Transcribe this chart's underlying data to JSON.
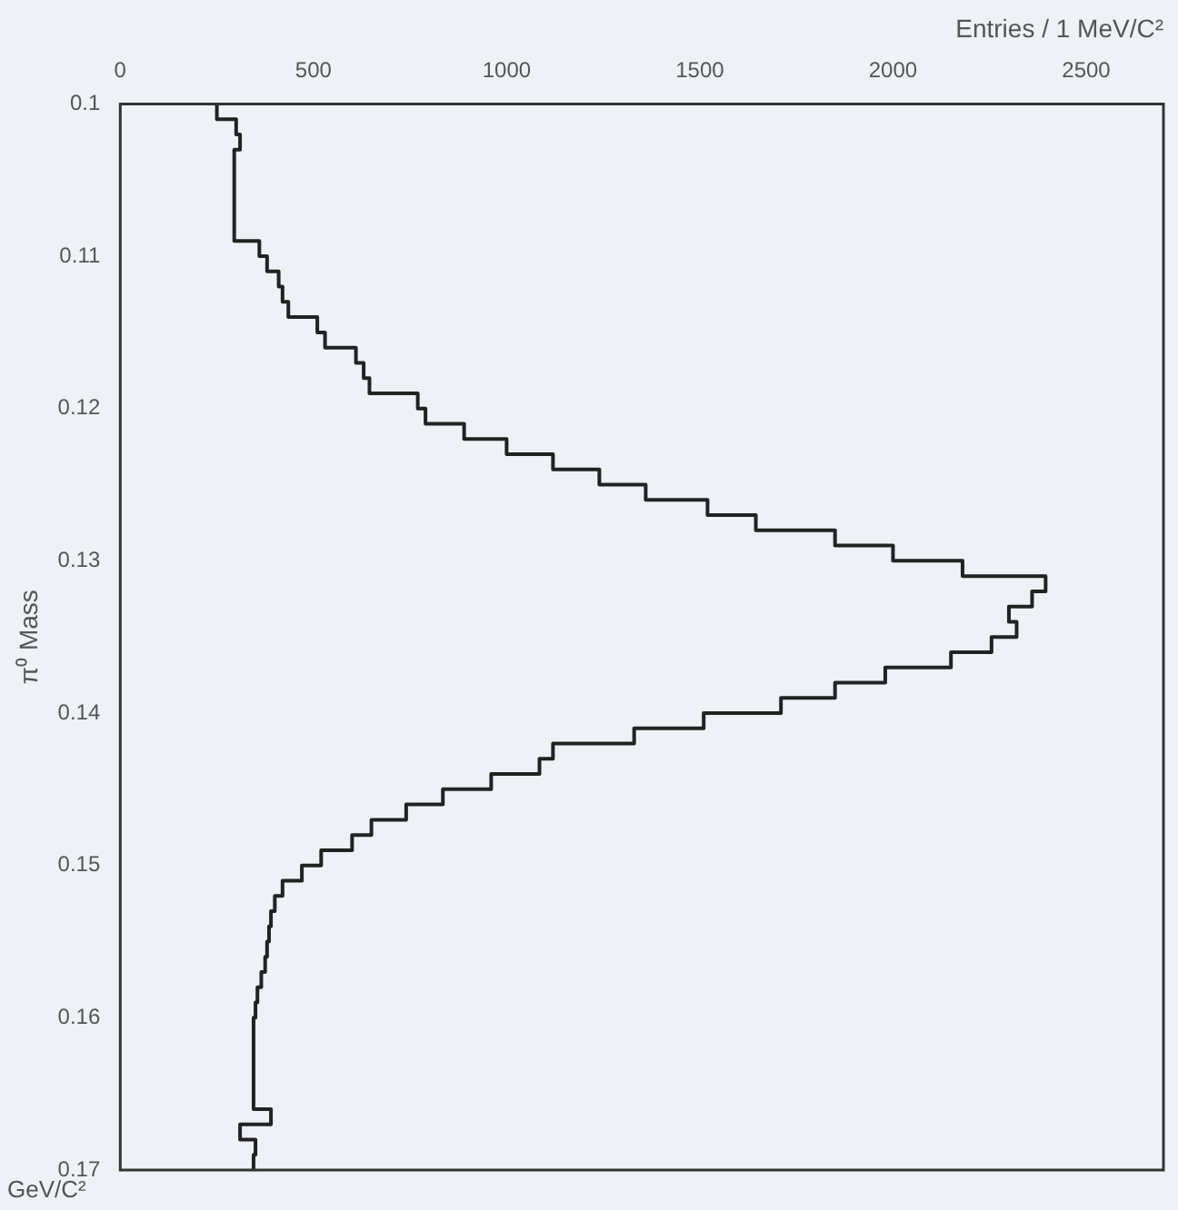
{
  "chart_data": {
    "type": "histogram",
    "orientation": "horizontal",
    "ylabel": "π⁰ Mass",
    "xlabel": "Entries / 1 MeV/C²",
    "annotations": [
      "GeV/C²"
    ],
    "bins": [
      0.1,
      0.101,
      0.102,
      0.103,
      0.104,
      0.105,
      0.106,
      0.107,
      0.108,
      0.109,
      0.11,
      0.111,
      0.112,
      0.113,
      0.114,
      0.115,
      0.116,
      0.117,
      0.118,
      0.119,
      0.12,
      0.121,
      0.122,
      0.123,
      0.124,
      0.125,
      0.126,
      0.127,
      0.128,
      0.129,
      0.13,
      0.131,
      0.132,
      0.133,
      0.134,
      0.135,
      0.136,
      0.137,
      0.138,
      0.139,
      0.14,
      0.141,
      0.142,
      0.143,
      0.144,
      0.145,
      0.146,
      0.147,
      0.148,
      0.149,
      0.15,
      0.151,
      0.152,
      0.153,
      0.154,
      0.155,
      0.156,
      0.157,
      0.158,
      0.159,
      0.16,
      0.161,
      0.162,
      0.163,
      0.164,
      0.165,
      0.166,
      0.167,
      0.168,
      0.169,
      0.17
    ],
    "values": [
      250,
      300,
      310,
      295,
      295,
      295,
      295,
      295,
      295,
      360,
      380,
      410,
      420,
      435,
      510,
      530,
      610,
      630,
      645,
      770,
      790,
      890,
      1000,
      1120,
      1240,
      1360,
      1520,
      1645,
      1850,
      2000,
      2180,
      2395,
      2360,
      2300,
      2320,
      2255,
      2150,
      1980,
      1850,
      1710,
      1510,
      1330,
      1120,
      1085,
      960,
      835,
      740,
      650,
      600,
      520,
      470,
      420,
      400,
      390,
      385,
      380,
      375,
      365,
      355,
      350,
      345,
      345,
      345,
      345,
      345,
      345,
      390,
      310,
      350,
      345
    ],
    "color": "#222222",
    "ylim": [
      0.17,
      0.1
    ],
    "yticks": [
      0.1,
      0.11,
      0.12,
      0.13,
      0.14,
      0.15,
      0.16,
      0.17
    ],
    "xlim": [
      0,
      2700
    ],
    "xticks": [
      0,
      500,
      1000,
      1500,
      2000,
      2500
    ],
    "grid": false
  }
}
